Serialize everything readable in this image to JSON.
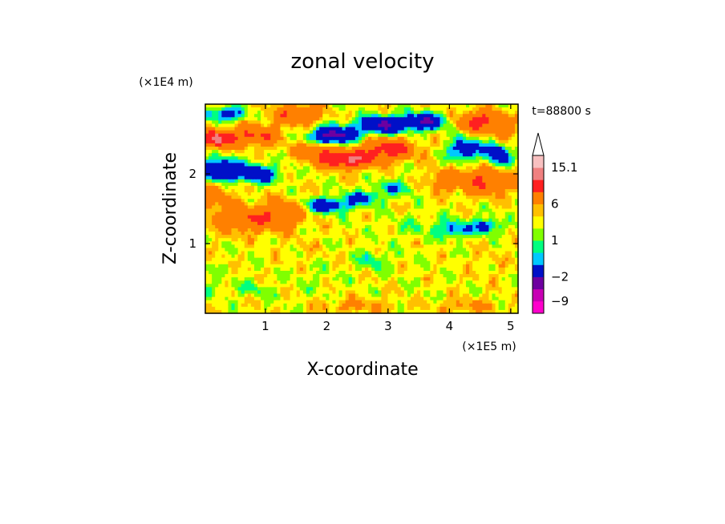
{
  "chart_data": {
    "type": "heatmap",
    "title": "zonal velocity",
    "xlabel": "X-coordinate",
    "ylabel": "Z-coordinate",
    "x_unit": "(×1E5 m)",
    "y_unit": "(×1E4 m)",
    "time_label": "t=88800 s",
    "xlim": [
      0.02,
      5.12
    ],
    "ylim": [
      0.0,
      3.0
    ],
    "x_ticks": [
      1,
      2,
      3,
      4,
      5
    ],
    "y_ticks": [
      1,
      2
    ],
    "colorbar": {
      "levels": [
        -12,
        -9,
        -6,
        -2,
        -1,
        0,
        1,
        2,
        3,
        6,
        9,
        12,
        15.1
      ],
      "colors": [
        "#ff00cc",
        "#c800b4",
        "#6e00a0",
        "#0010c8",
        "#00c8ff",
        "#00ff80",
        "#80ff00",
        "#ffff00",
        "#ffc000",
        "#ff8000",
        "#ff2020",
        "#f08080",
        "#f8c0c0",
        "#ffffff"
      ],
      "labels": [
        {
          "value": -9,
          "text": "−9"
        },
        {
          "value": -2,
          "text": "−2"
        },
        {
          "value": 1,
          "text": "1"
        },
        {
          "value": 6,
          "text": "6"
        },
        {
          "value": 15.1,
          "text": "15.1"
        }
      ]
    },
    "features": [
      {
        "x": 0.2,
        "z": 2.5,
        "value": 8,
        "sx": 0.25,
        "sz": 0.12
      },
      {
        "x": 0.8,
        "z": 2.55,
        "value": 5,
        "sx": 0.4,
        "sz": 0.15
      },
      {
        "x": 0.3,
        "z": 2.05,
        "value": -8,
        "sx": 0.35,
        "sz": 0.15
      },
      {
        "x": 0.9,
        "z": 2.0,
        "value": -6,
        "sx": 0.3,
        "sz": 0.12
      },
      {
        "x": 0.35,
        "z": 2.85,
        "value": -5,
        "sx": 0.3,
        "sz": 0.1
      },
      {
        "x": 1.5,
        "z": 2.85,
        "value": 4,
        "sx": 0.4,
        "sz": 0.15
      },
      {
        "x": 2.1,
        "z": 2.55,
        "value": -9,
        "sx": 0.35,
        "sz": 0.12
      },
      {
        "x": 2.9,
        "z": 2.7,
        "value": -8,
        "sx": 0.4,
        "sz": 0.12
      },
      {
        "x": 3.6,
        "z": 2.75,
        "value": -7,
        "sx": 0.35,
        "sz": 0.12
      },
      {
        "x": 2.3,
        "z": 2.2,
        "value": 8,
        "sx": 0.45,
        "sz": 0.12
      },
      {
        "x": 3.0,
        "z": 2.35,
        "value": 6,
        "sx": 0.45,
        "sz": 0.15
      },
      {
        "x": 1.8,
        "z": 2.35,
        "value": 4,
        "sx": 0.3,
        "sz": 0.12
      },
      {
        "x": 2.0,
        "z": 1.55,
        "value": -6,
        "sx": 0.35,
        "sz": 0.1
      },
      {
        "x": 2.6,
        "z": 1.65,
        "value": -4,
        "sx": 0.3,
        "sz": 0.1
      },
      {
        "x": 3.1,
        "z": 1.8,
        "value": -3,
        "sx": 0.3,
        "sz": 0.1
      },
      {
        "x": 4.25,
        "z": 2.35,
        "value": -6,
        "sx": 0.25,
        "sz": 0.15
      },
      {
        "x": 4.8,
        "z": 2.3,
        "value": -6,
        "sx": 0.2,
        "sz": 0.2
      },
      {
        "x": 4.5,
        "z": 2.75,
        "value": 6,
        "sx": 0.35,
        "sz": 0.15
      },
      {
        "x": 4.9,
        "z": 2.55,
        "value": 3,
        "sx": 0.2,
        "sz": 0.2
      },
      {
        "x": 4.1,
        "z": 1.2,
        "value": -4,
        "sx": 0.25,
        "sz": 0.12
      },
      {
        "x": 4.6,
        "z": 1.25,
        "value": -5,
        "sx": 0.2,
        "sz": 0.1
      },
      {
        "x": 4.6,
        "z": 1.9,
        "value": 5,
        "sx": 0.45,
        "sz": 0.2
      },
      {
        "x": 3.9,
        "z": 1.9,
        "value": 3,
        "sx": 0.3,
        "sz": 0.15
      },
      {
        "x": 3.5,
        "z": 1.25,
        "value": -1,
        "sx": 0.45,
        "sz": 0.15
      },
      {
        "x": 2.7,
        "z": 0.75,
        "value": -2,
        "sx": 0.2,
        "sz": 0.12
      },
      {
        "x": 3.0,
        "z": 0.8,
        "value": -0.5,
        "sx": 0.4,
        "sz": 0.15
      },
      {
        "x": 0.7,
        "z": 1.35,
        "value": 4,
        "sx": 0.6,
        "sz": 0.2
      },
      {
        "x": 0.2,
        "z": 1.7,
        "value": 3,
        "sx": 0.25,
        "sz": 0.2
      },
      {
        "x": 1.3,
        "z": 1.45,
        "value": 3,
        "sx": 0.35,
        "sz": 0.2
      },
      {
        "x": 0.2,
        "z": 0.4,
        "value": -1,
        "sx": 0.3,
        "sz": 0.15
      },
      {
        "x": 0.8,
        "z": 0.35,
        "value": -1.5,
        "sx": 0.25,
        "sz": 0.1
      },
      {
        "x": 1.8,
        "z": 0.5,
        "value": -0.5,
        "sx": 0.4,
        "sz": 0.2
      },
      {
        "x": 3.7,
        "z": 0.3,
        "value": 0,
        "sx": 0.6,
        "sz": 0.2
      },
      {
        "x": 4.7,
        "z": 0.7,
        "value": 0.5,
        "sx": 0.4,
        "sz": 0.25
      },
      {
        "x": 1.6,
        "z": 0.9,
        "value": 0.5,
        "sx": 0.35,
        "sz": 0.2
      },
      {
        "x": 4.3,
        "z": 0.1,
        "value": 2,
        "sx": 0.5,
        "sz": 0.1
      },
      {
        "x": 2.5,
        "z": 0.1,
        "value": 2,
        "sx": 0.6,
        "sz": 0.1
      }
    ]
  }
}
